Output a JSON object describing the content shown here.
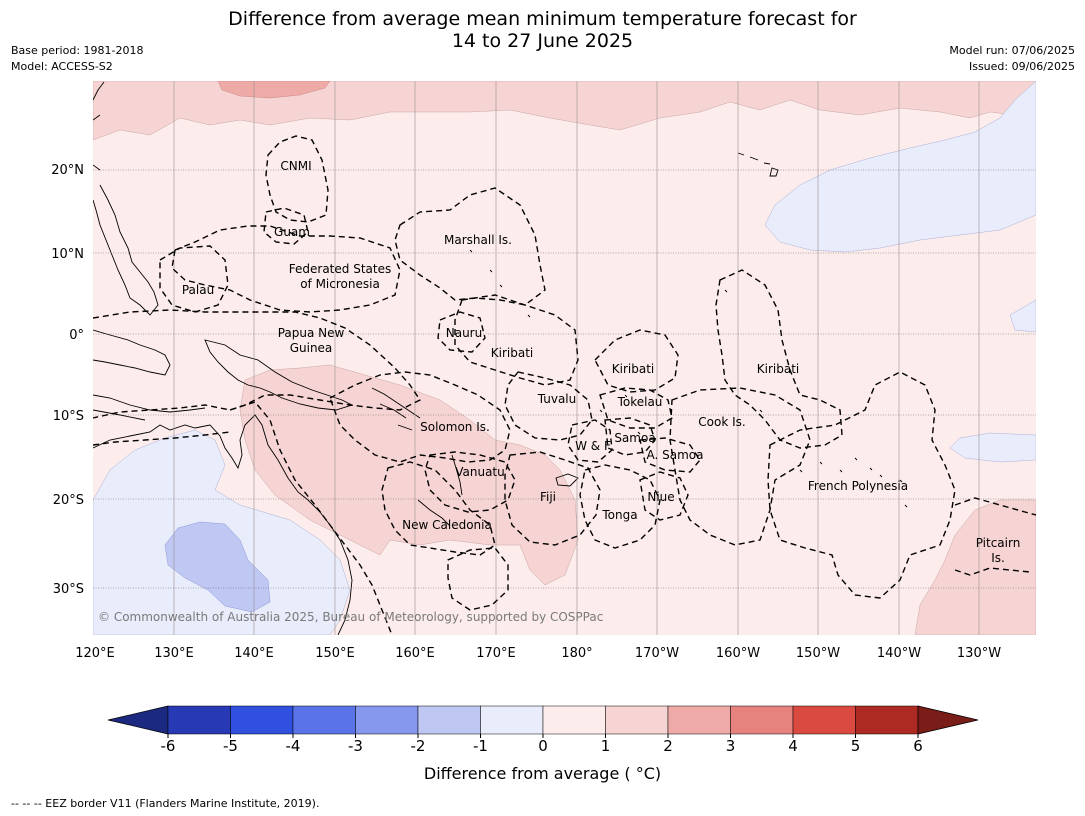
{
  "title_line1": "Difference from average mean minimum temperature forecast for",
  "title_line2": "14 to 27 June 2025",
  "meta_left": [
    "Base period: 1981-2018",
    "Model: ACCESS-S2"
  ],
  "meta_right": [
    "Model run: 07/06/2025",
    "Issued: 09/06/2025"
  ],
  "copyright": "© Commonwealth of Australia 2025, Bureau of Meteorology, supported by COSPPac",
  "lon_labels": [
    "120°E",
    "130°E",
    "140°E",
    "150°E",
    "160°E",
    "170°E",
    "180°",
    "170°W",
    "160°W",
    "150°W",
    "140°W",
    "130°W"
  ],
  "lat_labels": [
    "20°N",
    "10°N",
    "0°",
    "10°S",
    "20°S",
    "30°S"
  ],
  "region_labels": [
    "CNMI",
    "Guam",
    "Marshall Is.",
    "Federated States",
    "of Micronesia",
    "Palau",
    "Papua New",
    "Guinea",
    "Nauru",
    "Kiribati",
    "Kiribati",
    "Kiribati",
    "Tuvalu",
    "Tokelau",
    "Cook Is.",
    "Solomon Is.",
    "Samoa",
    "W & F",
    "A. Samoa",
    "Vanuatu",
    "Fiji",
    "Niue",
    "French Polynesia",
    "Tonga",
    "New Caledonia",
    "Pitcairn",
    "Is."
  ],
  "colorbar": {
    "ticks": [
      "-6",
      "-5",
      "-4",
      "-3",
      "-2",
      "-1",
      "0",
      "1",
      "2",
      "3",
      "4",
      "5",
      "6"
    ],
    "colors": [
      "#2739b4",
      "#3050e0",
      "#5a74e8",
      "#8697ee",
      "#bfc7f3",
      "#e9ecfb",
      "#fcecec",
      "#f6d4d3",
      "#eeaaa7",
      "#e6837f",
      "#da4a40",
      "#ad2a22"
    ],
    "under_color": "#1b2a80",
    "over_color": "#7a1d18",
    "label": "Difference from average ( °C)"
  },
  "footer": "--  --  -- EEZ border V11 (Flanders Marine Institute, 2019)."
}
